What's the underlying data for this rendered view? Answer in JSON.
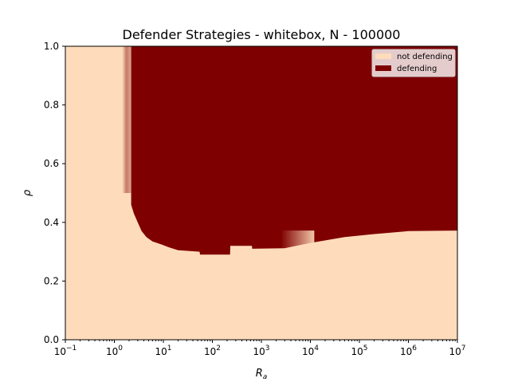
{
  "chart_data": {
    "type": "heatmap",
    "title": "Defender Strategies - whitebox, N - 100000",
    "xlabel_base": "R",
    "xlabel_sub": "a",
    "ylabel": "ρ",
    "x_scale": "log",
    "xlim": [
      0.1,
      10000000
    ],
    "ylim": [
      0,
      1
    ],
    "x_ticks": [
      {
        "value": 0.1,
        "base": "10",
        "exp": "−1"
      },
      {
        "value": 1,
        "base": "10",
        "exp": "0"
      },
      {
        "value": 10,
        "base": "10",
        "exp": "1"
      },
      {
        "value": 100,
        "base": "10",
        "exp": "2"
      },
      {
        "value": 1000,
        "base": "10",
        "exp": "3"
      },
      {
        "value": 10000,
        "base": "10",
        "exp": "4"
      },
      {
        "value": 100000,
        "base": "10",
        "exp": "5"
      },
      {
        "value": 1000000,
        "base": "10",
        "exp": "6"
      },
      {
        "value": 10000000,
        "base": "10",
        "exp": "7"
      }
    ],
    "y_ticks": [
      {
        "value": 0.0,
        "label": "0.0"
      },
      {
        "value": 0.2,
        "label": "0.2"
      },
      {
        "value": 0.4,
        "label": "0.4"
      },
      {
        "value": 0.6,
        "label": "0.6"
      },
      {
        "value": 0.8,
        "label": "0.8"
      },
      {
        "value": 1.0,
        "label": "1.0"
      }
    ],
    "legend": {
      "placement": "top-right",
      "entries": [
        {
          "label": "not defending",
          "color": "#fedcbb"
        },
        {
          "label": "defending",
          "color": "#7f0000"
        }
      ]
    },
    "colors": {
      "not_defending": "#fedcbb",
      "defending": "#7f0000"
    },
    "defending_boundary": [
      {
        "x": 2.2,
        "y": 1.0
      },
      {
        "x": 2.2,
        "y": 0.46
      },
      {
        "x": 2.5,
        "y": 0.43
      },
      {
        "x": 3.0,
        "y": 0.4
      },
      {
        "x": 3.6,
        "y": 0.37
      },
      {
        "x": 4.5,
        "y": 0.35
      },
      {
        "x": 6.0,
        "y": 0.335
      },
      {
        "x": 9.0,
        "y": 0.325
      },
      {
        "x": 13,
        "y": 0.315
      },
      {
        "x": 20,
        "y": 0.305
      },
      {
        "x": 55,
        "y": 0.3
      },
      {
        "x": 56,
        "y": 0.29
      },
      {
        "x": 230,
        "y": 0.29
      },
      {
        "x": 232,
        "y": 0.32
      },
      {
        "x": 640,
        "y": 0.32
      },
      {
        "x": 650,
        "y": 0.31
      },
      {
        "x": 3000,
        "y": 0.312
      },
      {
        "x": 10000,
        "y": 0.33
      },
      {
        "x": 50000,
        "y": 0.35
      },
      {
        "x": 200000,
        "y": 0.36
      },
      {
        "x": 1000000,
        "y": 0.37
      },
      {
        "x": 10000000,
        "y": 0.372
      }
    ],
    "partial_band": {
      "x_from": 1.45,
      "x_to": 2.2,
      "y_from": 0.5,
      "y_to": 1.0
    }
  }
}
